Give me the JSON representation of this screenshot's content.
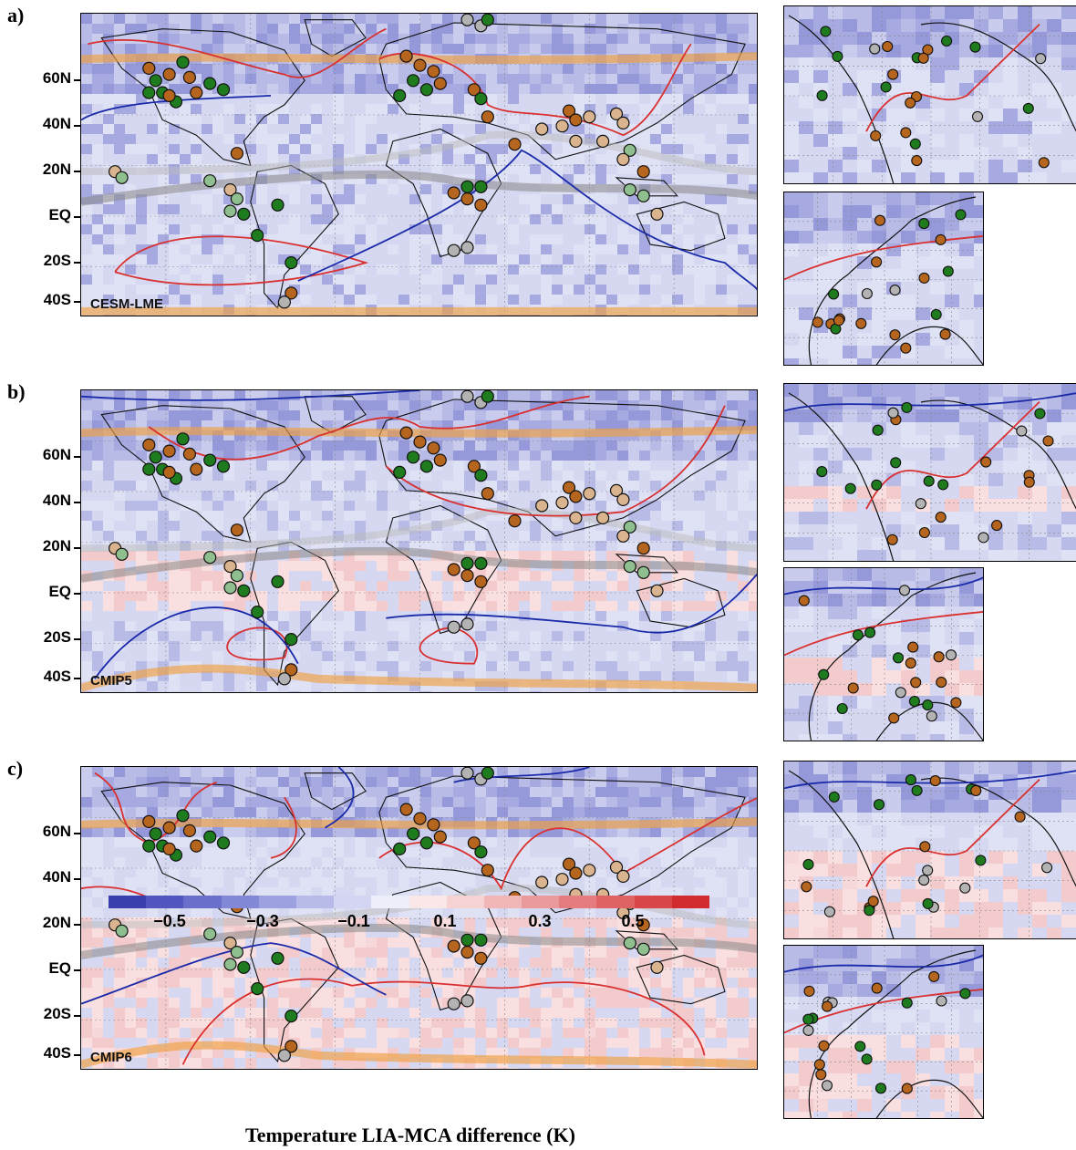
{
  "panels": [
    {
      "label": "a)",
      "model": "CESM-LME",
      "seed": 1
    },
    {
      "label": "b)",
      "model": "CMIP5",
      "seed": 2
    },
    {
      "label": "c)",
      "model": "CMIP6",
      "seed": 3
    }
  ],
  "lat_labels": [
    "60N",
    "40N",
    "20N",
    "EQ",
    "20S",
    "40S"
  ],
  "colorbar": {
    "title": "Temperature LIA-MCA difference (K)",
    "tick_labels": [
      "−0.5",
      "−0.3",
      "−0.1",
      "0.1",
      "0.3",
      "0.5"
    ],
    "colors": [
      "#3a3fb0",
      "#5257c0",
      "#6a6fcc",
      "#8287d6",
      "#9da1e0",
      "#b8bbe9",
      "#d3d5f2",
      "#eceef9",
      "#fae8e8",
      "#f6d2d3",
      "#f0b6b8",
      "#eb9a9c",
      "#e57d80",
      "#df6265",
      "#d84649",
      "#d32c30"
    ]
  },
  "colors": {
    "proxy_brown": "#b5651d",
    "proxy_green": "#1e7b1e",
    "proxy_tan": "#d9b48f",
    "proxy_lightgreen": "#8fbf8f",
    "proxy_gray": "#b3b3b3",
    "itcz_line": "#888888",
    "jet_line": "#f0a040",
    "pos_contour": "#d93030",
    "neg_contour": "#1a2aa8"
  }
}
